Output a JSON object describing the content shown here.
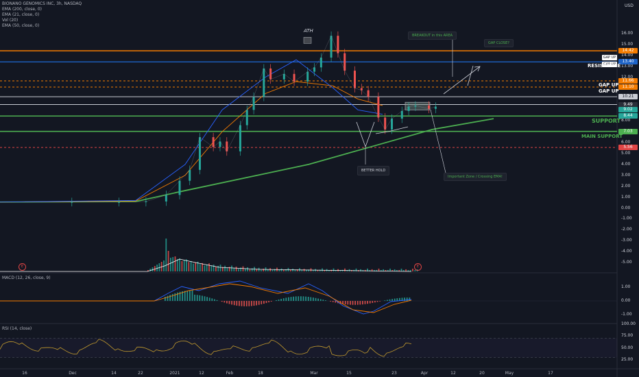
{
  "header": {
    "title": "BIONANO GENOMICS INC, 3h, NASDAQ",
    "indicators": [
      "EMA (200, close, 0)",
      "EMA (21, close, 0)",
      "Vol (20)",
      "EMA (50, close, 0)"
    ],
    "currency": "USD"
  },
  "panes": {
    "macd_label": "MACD (12, 26, close, 9)",
    "rsi_label": "RSI (14, close)"
  },
  "price_axis": [
    "16.00",
    "15.00",
    "14.00",
    "13.00",
    "12.00",
    "11.00",
    "10.00",
    "9.00",
    "8.00",
    "7.00",
    "6.00",
    "5.00",
    "4.00",
    "3.00",
    "2.00",
    "1.00",
    "0.00",
    "-1.00",
    "-2.00",
    "-3.00",
    "-4.00",
    "-5.00"
  ],
  "macd_axis": [
    "1.00",
    "0.00",
    "-1.00"
  ],
  "rsi_axis": [
    "100.00",
    "75.00",
    "50.00",
    "25.00"
  ],
  "time_axis": [
    "16",
    "Dec",
    "14",
    "22",
    "2021",
    "12",
    "Feb",
    "18",
    "Mar",
    "15",
    "23",
    "Apr",
    "12",
    "20",
    "May",
    "17"
  ],
  "price_tags": {
    "t1": {
      "text": "14.42",
      "color": "#f57c00"
    },
    "t2": {
      "text": "13.40",
      "color": "#1e63c7"
    },
    "t3": {
      "text": "11.66",
      "color": "#f57c00"
    },
    "t4": {
      "text": "11.10",
      "color": "#f57c00"
    },
    "t5": {
      "text": "10.21",
      "color": "#c9ccd4"
    },
    "t6": {
      "text": "9.49",
      "color": "#2a2e39"
    },
    "t7": {
      "text": "9.02",
      "color": "#26a69a"
    },
    "t8": {
      "text": "8.44",
      "color": "#26a69a"
    },
    "t9": {
      "text": "7.03",
      "color": "#4caf50"
    },
    "t10": {
      "text": "5.56",
      "color": "#e04545"
    }
  },
  "small_tags": [
    "GAP UP",
    "GAP UP"
  ],
  "annotations": {
    "ath": "ATH",
    "resistance": "RESISTANCE",
    "gap_up_1": "GAP UP",
    "gap_up_2": "GAP UP",
    "support": "SUPPORT",
    "main_support": "MAIN SUPPORT",
    "breakout": "BREAKOUT in this AREA",
    "gap_close": "GAP CLOSE?",
    "better_hold": "BETTER HOLD",
    "important_zone": "Important Zone / Crossing EMA!",
    "earnings": "E"
  },
  "colors": {
    "background": "#131722",
    "up": "#26a69a",
    "down": "#ef5350",
    "ema200": "#4caf50",
    "ema21": "#2962ff",
    "ema50": "#f57c00",
    "resistance_line": "#f57c00",
    "resistance_blue": "#1e63c7",
    "support": "#4caf50",
    "macd": "#2962ff",
    "signal": "#f57c00",
    "rsi": "#c39b2e"
  },
  "chart_data": {
    "type": "line",
    "title": "BIONANO GENOMICS INC, 3h, NASDAQ",
    "x_labels": [
      "16",
      "Dec",
      "14",
      "22",
      "2021",
      "12",
      "Feb",
      "18",
      "Mar",
      "15",
      "23",
      "Apr",
      "12",
      "20",
      "May",
      "17"
    ],
    "ylim": [
      -5.5,
      16.5
    ],
    "price_close": [
      [
        "2020-11-16",
        0.55
      ],
      [
        "2020-11-30",
        0.55
      ],
      [
        "2020-12-14",
        0.55
      ],
      [
        "2020-12-22",
        0.6
      ],
      [
        "2020-12-28",
        1.2
      ],
      [
        "2021-01-01",
        2.5
      ],
      [
        "2021-01-04",
        3.5
      ],
      [
        "2021-01-07",
        6.5
      ],
      [
        "2021-01-11",
        5.6
      ],
      [
        "2021-01-13",
        6.1
      ],
      [
        "2021-01-15",
        5.2
      ],
      [
        "2021-01-19",
        7.6
      ],
      [
        "2021-01-21",
        9.0
      ],
      [
        "2021-01-23",
        10.2
      ],
      [
        "2021-01-26",
        12.8
      ],
      [
        "2021-01-28",
        11.8
      ],
      [
        "2021-02-01",
        12.3
      ],
      [
        "2021-02-04",
        11.6
      ],
      [
        "2021-02-08",
        12.5
      ],
      [
        "2021-02-10",
        12.9
      ],
      [
        "2021-02-12",
        13.8
      ],
      [
        "2021-02-15",
        15.8
      ],
      [
        "2021-02-17",
        14.2
      ],
      [
        "2021-02-19",
        12.6
      ],
      [
        "2021-02-22",
        11.0
      ],
      [
        "2021-02-24",
        10.8
      ],
      [
        "2021-02-26",
        10.2
      ],
      [
        "2021-03-01",
        8.3
      ],
      [
        "2021-03-03",
        7.2
      ],
      [
        "2021-03-05",
        8.2
      ],
      [
        "2021-03-08",
        8.9
      ],
      [
        "2021-03-10",
        9.3
      ],
      [
        "2021-03-12",
        9.4
      ],
      [
        "2021-03-16",
        9.1
      ],
      [
        "2021-03-18",
        9.3
      ]
    ],
    "series": [
      {
        "name": "EMA (200, close, 0)",
        "values": [
          [
            0,
            0.55
          ],
          [
            0.22,
            0.6
          ],
          [
            0.3,
            1.6
          ],
          [
            0.5,
            4.0
          ],
          [
            0.6,
            5.6
          ],
          [
            0.7,
            7.2
          ],
          [
            0.8,
            8.2
          ]
        ]
      },
      {
        "name": "EMA (21, close, 0)",
        "values": [
          [
            0,
            0.55
          ],
          [
            0.22,
            0.7
          ],
          [
            0.3,
            4.0
          ],
          [
            0.36,
            9.0
          ],
          [
            0.43,
            12.0
          ],
          [
            0.48,
            13.6
          ],
          [
            0.54,
            11.0
          ],
          [
            0.58,
            9.0
          ],
          [
            0.62,
            8.6
          ]
        ]
      },
      {
        "name": "EMA (50, close, 0)",
        "values": [
          [
            0,
            0.55
          ],
          [
            0.22,
            0.65
          ],
          [
            0.3,
            3.0
          ],
          [
            0.36,
            7.0
          ],
          [
            0.43,
            10.5
          ],
          [
            0.48,
            11.6
          ],
          [
            0.54,
            11.2
          ],
          [
            0.58,
            10.0
          ],
          [
            0.62,
            9.4
          ]
        ]
      }
    ],
    "levels": {
      "resistance": 14.42,
      "resistance_blue": 13.4,
      "gap_up_1": 11.66,
      "gap_up_2": 11.1,
      "level_10_21": 10.21,
      "level_9_49": 9.49,
      "support": 8.44,
      "main_support": 7.03,
      "better_hold": 5.56
    },
    "macd_ylim": [
      -1.5,
      1.5
    ],
    "rsi_ylim": [
      15,
      105
    ],
    "rsi_levels": [
      70,
      30
    ]
  }
}
